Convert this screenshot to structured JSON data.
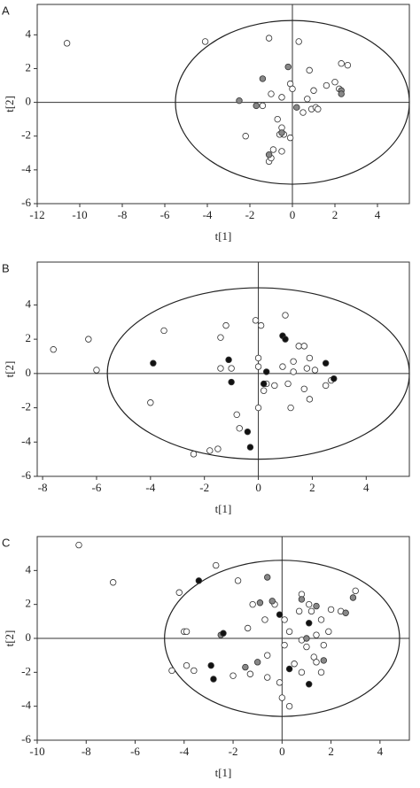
{
  "chart_data": [
    {
      "type": "scatter",
      "label": "A",
      "xlabel": "t[1]",
      "ylabel": "t[2]",
      "xlim": [
        -12,
        5.5
      ],
      "ylim": [
        -6,
        5.8
      ],
      "xticks": [
        -12,
        -10,
        -8,
        -6,
        -4,
        -2,
        0,
        2,
        4
      ],
      "yticks": [
        -6,
        -4,
        -2,
        0,
        2,
        4
      ],
      "ellipse": {
        "rx": 5.5,
        "ry": 4.85
      },
      "series": [
        {
          "color": "#ffffff",
          "x": [
            -10.6,
            -4.1,
            -1.1,
            0.3,
            0.8,
            2.3,
            2.6,
            -0.1,
            1.0,
            1.6,
            2.0,
            2.2,
            0.7,
            0.9,
            1.1,
            0.5,
            1.2,
            -1.0,
            -0.5,
            -1.4,
            -0.7,
            -0.5,
            -0.4,
            -0.6,
            -0.1,
            -2.2,
            -0.9,
            -0.5,
            -1.1,
            -1.0,
            0.0
          ],
          "y": [
            3.5,
            3.6,
            3.8,
            3.6,
            1.9,
            2.3,
            2.2,
            1.1,
            0.7,
            1.0,
            1.2,
            0.8,
            0.2,
            -0.4,
            -0.3,
            -0.6,
            -0.4,
            0.5,
            0.3,
            -0.2,
            -1.0,
            -1.5,
            -1.9,
            -1.9,
            -2.1,
            -2.0,
            -2.8,
            -2.9,
            -3.5,
            -3.3,
            0.8
          ]
        },
        {
          "color": "#888888",
          "x": [
            -0.2,
            -1.4,
            2.3,
            2.3,
            -2.5,
            -1.7,
            0.2,
            -0.5,
            -1.1
          ],
          "y": [
            2.1,
            1.4,
            0.7,
            0.5,
            0.1,
            -0.2,
            -0.3,
            -1.8,
            -3.1
          ]
        }
      ]
    },
    {
      "type": "scatter",
      "label": "B",
      "xlabel": "t[1]",
      "ylabel": "t[2]",
      "xlim": [
        -8.2,
        5.6
      ],
      "ylim": [
        -6,
        6.5
      ],
      "xticks": [
        -8,
        -6,
        -4,
        -2,
        0,
        2,
        4
      ],
      "yticks": [
        -6,
        -4,
        -2,
        0,
        2,
        4
      ],
      "ellipse": {
        "rx": 5.6,
        "ry": 5.0
      },
      "series": [
        {
          "color": "#ffffff",
          "x": [
            -7.6,
            -6.3,
            -6.0,
            -3.5,
            -1.4,
            -1.2,
            -0.1,
            0.1,
            1.0,
            -4.0,
            -1.4,
            -1.0,
            0.0,
            0.0,
            0.3,
            0.2,
            0.0,
            -0.8,
            -0.7,
            -1.5,
            -1.8,
            -2.4,
            1.5,
            1.7,
            1.3,
            1.9,
            0.9,
            1.3,
            1.8,
            2.1,
            2.7,
            2.5,
            1.7,
            1.9,
            1.2,
            0.6,
            1.1
          ],
          "y": [
            1.4,
            2.0,
            0.2,
            2.5,
            2.1,
            2.8,
            3.1,
            2.8,
            3.4,
            -1.7,
            0.3,
            0.3,
            0.9,
            0.4,
            -0.6,
            -1.0,
            -2.0,
            -2.4,
            -3.2,
            -4.4,
            -4.5,
            -4.7,
            1.6,
            1.6,
            0.7,
            0.9,
            0.4,
            0.1,
            0.3,
            0.2,
            -0.4,
            -0.7,
            -0.9,
            -1.5,
            -2.0,
            -0.7,
            -0.6
          ]
        },
        {
          "color": "#111111",
          "x": [
            -3.9,
            -1.1,
            -1.0,
            0.3,
            0.2,
            0.9,
            1.0,
            2.5,
            2.8,
            -0.4,
            -0.3
          ],
          "y": [
            0.6,
            0.8,
            -0.5,
            0.1,
            -0.6,
            2.2,
            2.0,
            0.6,
            -0.3,
            -3.4,
            -4.3
          ]
        }
      ]
    },
    {
      "type": "scatter",
      "label": "C",
      "xlabel": "t[1]",
      "ylabel": "t[2]",
      "xlim": [
        -10,
        5.2
      ],
      "ylim": [
        -6,
        6
      ],
      "xticks": [
        -10,
        -8,
        -6,
        -4,
        -2,
        0,
        2,
        4
      ],
      "yticks": [
        -6,
        -4,
        -2,
        0,
        2,
        4
      ],
      "ellipse": {
        "rx": 4.8,
        "ry": 4.6
      },
      "series": [
        {
          "color": "#ffffff",
          "x": [
            -8.3,
            -6.9,
            -2.7,
            -4.2,
            -1.8,
            -4.0,
            -3.9,
            -4.5,
            -3.9,
            -3.6,
            -2.0,
            -1.3,
            -1.2,
            -0.7,
            -1.4,
            -0.6,
            -0.6,
            0.0,
            0.3,
            -0.1,
            0.5,
            0.1,
            0.8,
            1.0,
            1.3,
            0.8,
            1.6,
            0.1,
            0.7,
            0.8,
            1.2,
            1.6,
            1.4,
            1.7,
            2.0,
            2.4,
            3.0,
            -0.3,
            0.3,
            1.4,
            1.1,
            1.9
          ],
          "y": [
            5.5,
            3.3,
            4.3,
            2.7,
            3.4,
            0.4,
            0.4,
            -1.9,
            -1.6,
            -1.9,
            -2.2,
            -2.1,
            2.0,
            1.1,
            0.6,
            -1.0,
            -2.3,
            -3.5,
            -4.0,
            -2.6,
            -1.5,
            -0.4,
            -0.1,
            -0.5,
            -1.1,
            -2.0,
            -2.0,
            1.1,
            1.6,
            2.6,
            1.6,
            1.1,
            0.2,
            -0.4,
            1.7,
            1.6,
            2.8,
            2.0,
            0.4,
            -1.4,
            2.0,
            0.4
          ]
        },
        {
          "color": "#888888",
          "x": [
            -0.6,
            -0.4,
            -2.5,
            -1.0,
            -1.5,
            0.8,
            1.4,
            1.7,
            2.9,
            2.6,
            1.0,
            -0.9
          ],
          "y": [
            3.6,
            2.2,
            0.2,
            -1.4,
            -1.7,
            2.3,
            1.9,
            -1.3,
            2.4,
            1.5,
            0.0,
            2.1
          ]
        },
        {
          "color": "#111111",
          "x": [
            -3.4,
            -2.4,
            -2.9,
            -2.8,
            -0.1,
            1.1,
            0.3,
            1.1
          ],
          "y": [
            3.4,
            0.3,
            -1.6,
            -2.4,
            1.4,
            0.9,
            -1.8,
            -2.7
          ]
        }
      ]
    }
  ]
}
